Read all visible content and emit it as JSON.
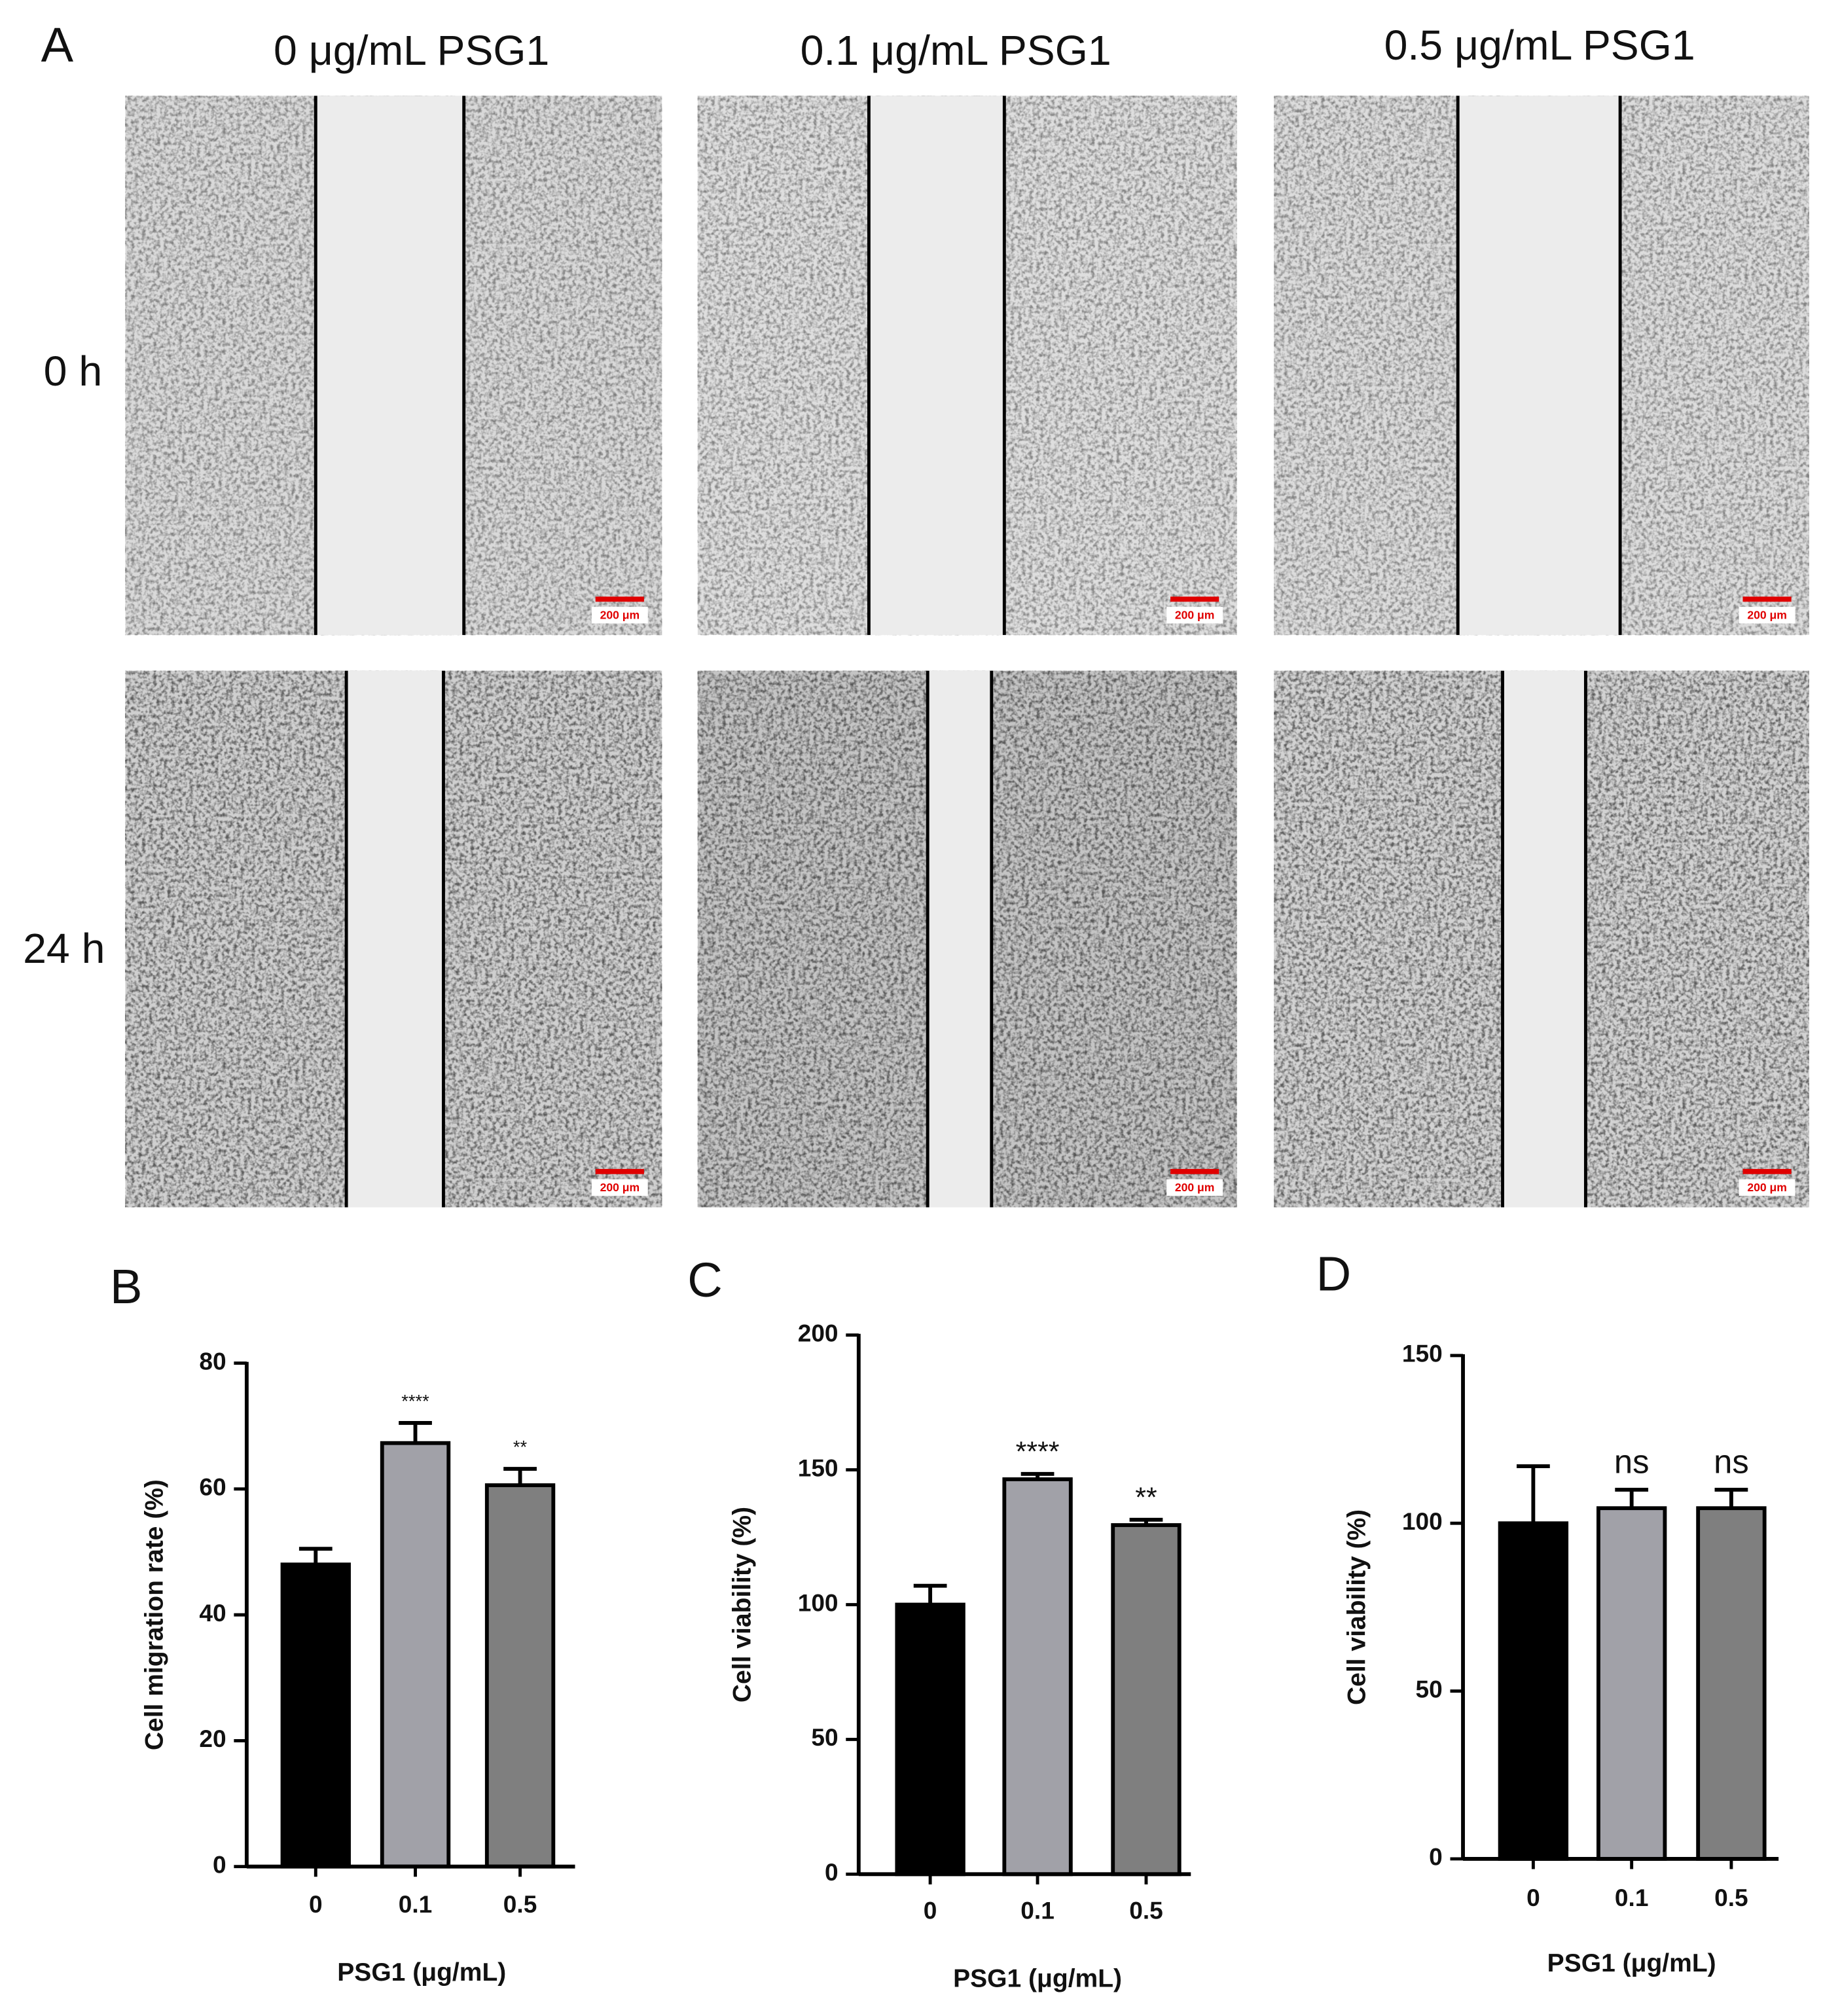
{
  "panel_a": {
    "label": "A",
    "columns": [
      "0 μg/mL PSG1",
      "0.1 μg/mL PSG1",
      "0.5 μg/mL PSG1"
    ],
    "rows": [
      {
        "label": "0 h",
        "scale_bars": [
          "200 μm",
          "200 μm",
          "200 μm"
        ]
      },
      {
        "label": "24 h",
        "scale_bars": [
          "200 μm",
          "200 μm",
          "200 μm"
        ]
      }
    ]
  },
  "chart_data": [
    {
      "type": "bar",
      "panel_label": "B",
      "y_label": "Cell migration rate (%)",
      "x_label": "PSG1 (μg/mL)",
      "categories": [
        "0",
        "0.1",
        "0.5"
      ],
      "values": [
        48,
        67.3,
        60.6
      ],
      "errors": [
        2.5,
        3.2,
        2.6
      ],
      "significance": [
        null,
        "****",
        "**"
      ],
      "colors": [
        "#000000",
        "#a1a1a8",
        "#7f7f7f"
      ],
      "ylim": [
        0,
        80
      ],
      "yticks": [
        0,
        20,
        40,
        60,
        80
      ]
    },
    {
      "type": "bar",
      "panel_label": "C",
      "y_label": "Cell viability (%)",
      "x_label": "PSG1 (μg/mL)",
      "categories": [
        "0",
        "0.1",
        "0.5"
      ],
      "values": [
        100,
        146.5,
        129.5
      ],
      "errors": [
        7,
        2,
        2
      ],
      "significance": [
        null,
        "****",
        "**"
      ],
      "colors": [
        "#000000",
        "#a1a1a8",
        "#7f7f7f"
      ],
      "ylim": [
        0,
        200
      ],
      "yticks": [
        0,
        50,
        100,
        150,
        200
      ]
    },
    {
      "type": "bar",
      "panel_label": "D",
      "y_label": "Cell viability (%)",
      "x_label": "PSG1 (μg/mL)",
      "categories": [
        "0",
        "0.1",
        "0.5"
      ],
      "values": [
        100,
        104.5,
        104.5
      ],
      "errors": [
        17,
        5.5,
        5.5
      ],
      "significance": [
        null,
        "ns",
        "ns"
      ],
      "colors": [
        "#000000",
        "#a1a1a8",
        "#7f7f7f"
      ],
      "ylim": [
        0,
        150
      ],
      "yticks": [
        0,
        50,
        100,
        150
      ]
    }
  ]
}
